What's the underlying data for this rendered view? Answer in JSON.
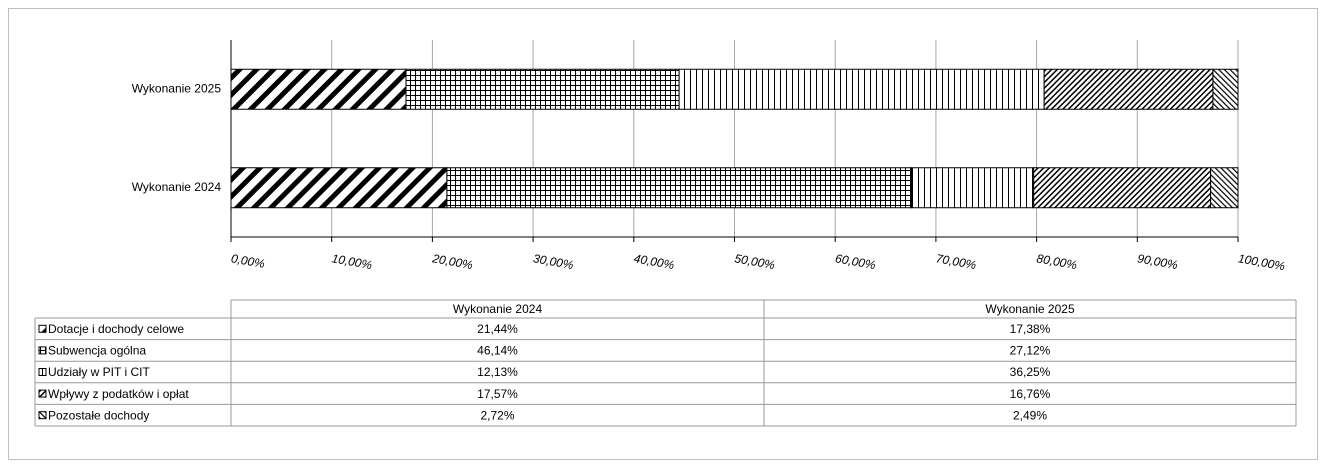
{
  "chart_data": {
    "type": "bar",
    "orientation": "horizontal",
    "stacked": true,
    "categories": [
      "Wykonanie 2024",
      "Wykonanie 2025"
    ],
    "series": [
      {
        "name": "Dotacje i dochody celowe",
        "color": "#000000",
        "values": [
          21.44,
          17.38
        ],
        "value_labels": [
          "21,44%",
          "17,38%"
        ]
      },
      {
        "name": "Subwencja ogólna",
        "color": "#000000",
        "values": [
          46.14,
          27.12
        ],
        "value_labels": [
          "46,14%",
          "27,12%"
        ]
      },
      {
        "name": "Udziały w PIT i CIT",
        "color": "#000000",
        "values": [
          12.13,
          36.25
        ],
        "value_labels": [
          "12,13%",
          "36,25%"
        ]
      },
      {
        "name": "Wpływy z podatków i opłat",
        "color": "#000000",
        "values": [
          17.57,
          16.76
        ],
        "value_labels": [
          "17,57%",
          "16,76%"
        ]
      },
      {
        "name": "Pozostałe dochody",
        "color": "#000000",
        "values": [
          2.72,
          2.49
        ],
        "value_labels": [
          "2,72%",
          "2,49%"
        ]
      }
    ],
    "xlim": [
      0,
      100
    ],
    "xticks": [
      {
        "value": 0,
        "label": "0,00%"
      },
      {
        "value": 10,
        "label": "10,00%"
      },
      {
        "value": 20,
        "label": "20,00%"
      },
      {
        "value": 30,
        "label": "30,00%"
      },
      {
        "value": 40,
        "label": "40,00%"
      },
      {
        "value": 50,
        "label": "50,00%"
      },
      {
        "value": 60,
        "label": "60,00%"
      },
      {
        "value": 70,
        "label": "70,00%"
      },
      {
        "value": 80,
        "label": "80,00%"
      },
      {
        "value": 90,
        "label": "90,00%"
      },
      {
        "value": 100,
        "label": "100,00%"
      }
    ],
    "grid": true,
    "data_table": true
  }
}
